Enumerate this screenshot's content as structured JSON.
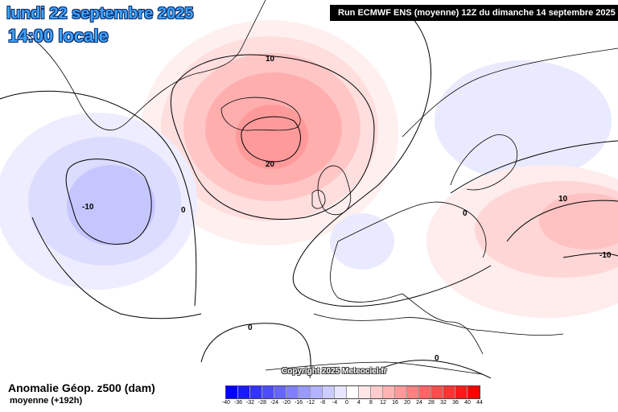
{
  "header": {
    "date": "lundi 22 septembre 2025",
    "time": "14:00 locale",
    "run": "Run ECMWF ENS (moyenne) 12Z du dimanche 14 septembre 2025"
  },
  "copyright": "Copyright 2025 Meteociel.fr",
  "footer": {
    "variable": "Anomalie Géop. z500 (dam)",
    "subtitle": "moyenne   (+192h)"
  },
  "contour_labels": [
    "10",
    "20",
    "-10",
    "0",
    "0",
    "0",
    "0",
    "10",
    "-10"
  ],
  "legend": {
    "labels": [
      "-40",
      "-36",
      "-32",
      "-28",
      "-24",
      "-20",
      "-16",
      "-12",
      "-8",
      "-4",
      "0",
      "4",
      "8",
      "12",
      "16",
      "20",
      "24",
      "28",
      "32",
      "36",
      "40",
      "44"
    ],
    "colors": [
      "#0000ff",
      "#1a1aff",
      "#3333ff",
      "#4d4dff",
      "#6666ff",
      "#8080ff",
      "#9999ff",
      "#b3b3ff",
      "#ccccff",
      "#e6e6ff",
      "#ffffff",
      "#ffe6e6",
      "#ffcccc",
      "#ffb3b3",
      "#ff9999",
      "#ff8080",
      "#ff6666",
      "#ff4d4d",
      "#ff3333",
      "#ff1a1a",
      "#ff0000"
    ]
  },
  "colors": {
    "land_line": "#000000",
    "contour": "#000000",
    "title_text": "#3fa3ff"
  }
}
